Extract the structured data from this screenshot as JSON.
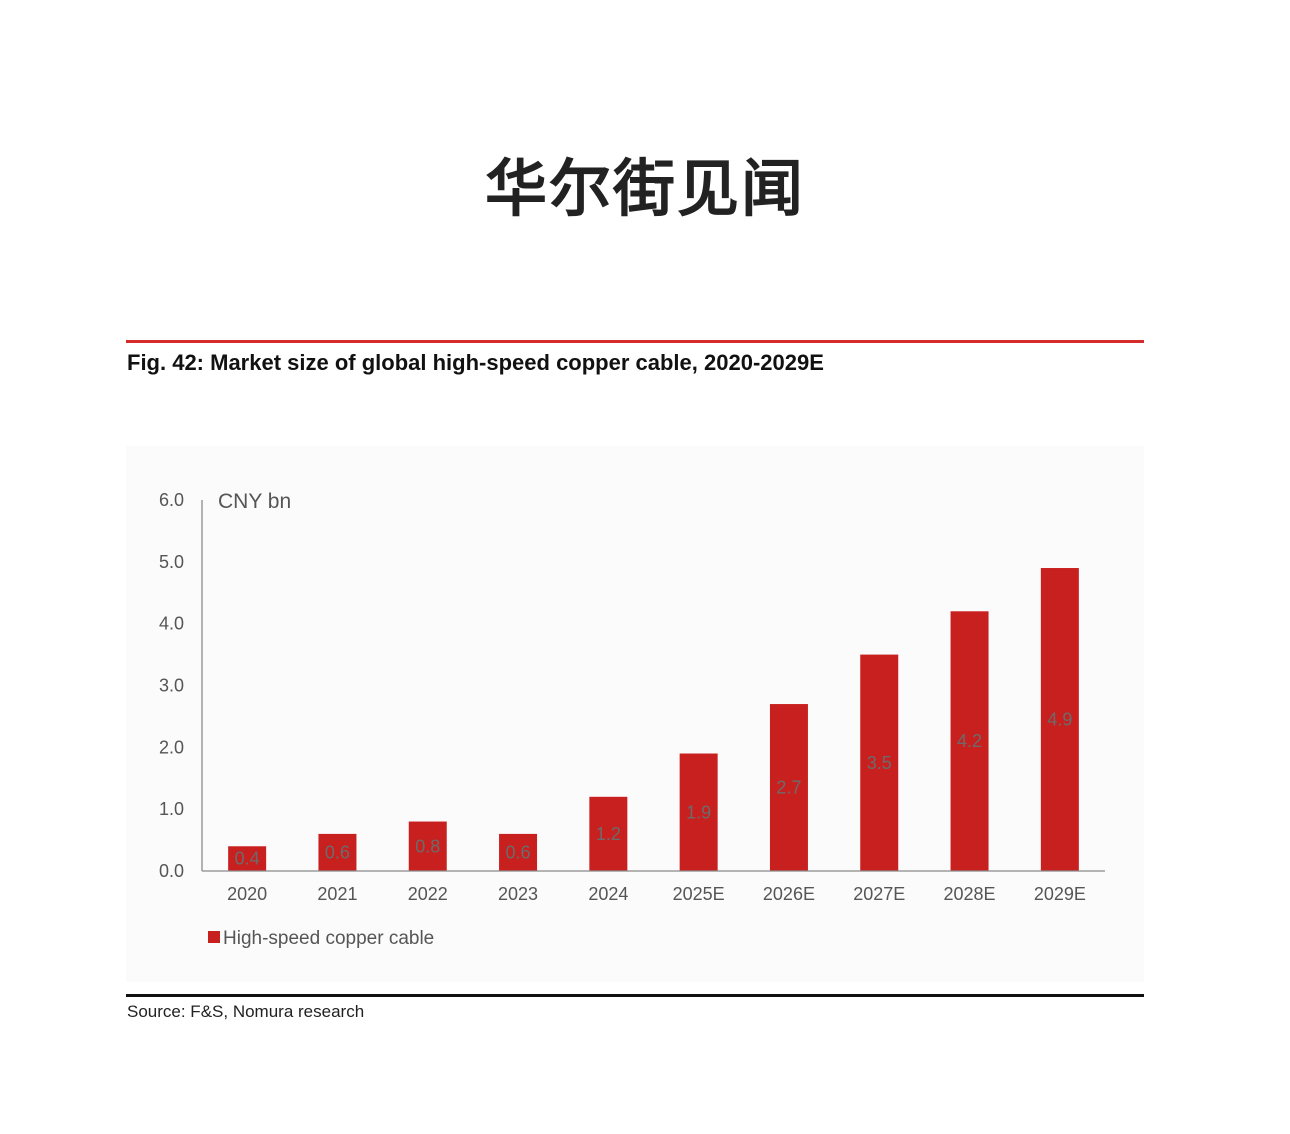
{
  "brand": "华尔街见闻",
  "figure": {
    "title": "Fig. 42:  Market size of global high-speed copper cable, 2020-2029E",
    "source": "Source: F&S, Nomura research"
  },
  "colors": {
    "bar": "#c8201f",
    "top_rule": "#d62b2b",
    "bottom_rule": "#111111"
  },
  "chart_data": {
    "type": "bar",
    "categories": [
      "2020",
      "2021",
      "2022",
      "2023",
      "2024",
      "2025E",
      "2026E",
      "2027E",
      "2028E",
      "2029E"
    ],
    "series": [
      {
        "name": "High-speed copper cable",
        "values": [
          0.4,
          0.6,
          0.8,
          0.6,
          1.2,
          1.9,
          2.7,
          3.5,
          4.2,
          4.9
        ]
      }
    ],
    "data_labels": [
      "0.4",
      "0.6",
      "0.8",
      "0.6",
      "1.2",
      "1.9",
      "2.7",
      "3.5",
      "4.2",
      "4.9"
    ],
    "y_ticks": [
      "0.0",
      "1.0",
      "2.0",
      "3.0",
      "4.0",
      "5.0",
      "6.0"
    ],
    "y_unit": "CNY bn",
    "ylim": [
      0,
      6
    ],
    "grid": false,
    "legend_position": "bottom-left"
  }
}
